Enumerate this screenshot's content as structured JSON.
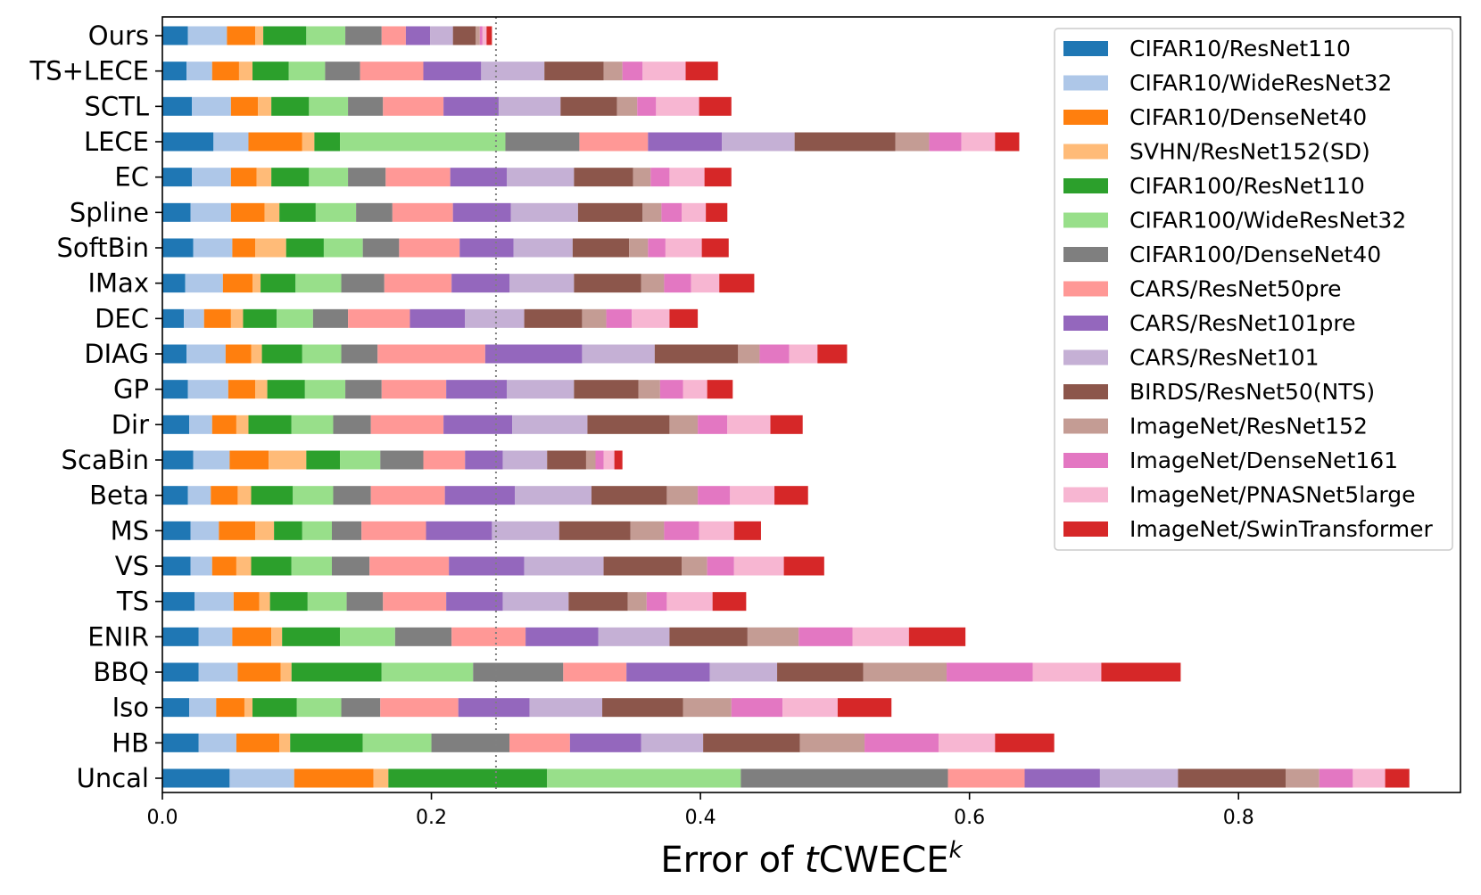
{
  "chart_data": {
    "type": "bar",
    "orientation": "horizontal",
    "stacked": true,
    "xlabel_prefix": "Error of ",
    "xlabel_italic": "t",
    "xlabel_main": "CWECE",
    "xlabel_superscript": "k",
    "xlim": [
      0,
      0.965
    ],
    "xticks": [
      "0.0",
      "0.2",
      "0.4",
      "0.6",
      "0.8"
    ],
    "xtick_values": [
      0,
      0.2,
      0.4,
      0.6,
      0.8
    ],
    "reference_line": 0.248,
    "legend_position": "top-right",
    "categories": [
      "Ours",
      "TS+LECE",
      "SCTL",
      "LECE",
      "EC",
      "Spline",
      "SoftBin",
      "IMax",
      "DEC",
      "DIAG",
      "GP",
      "Dir",
      "ScaBin",
      "Beta",
      "MS",
      "VS",
      "TS",
      "ENIR",
      "BBQ",
      "Iso",
      "HB",
      "Uncal"
    ],
    "series": [
      {
        "name": "CIFAR10/ResNet110",
        "color": "#1f77b4",
        "values": [
          0.019,
          0.018,
          0.022,
          0.038,
          0.022,
          0.021,
          0.023,
          0.017,
          0.016,
          0.018,
          0.019,
          0.02,
          0.023,
          0.019,
          0.021,
          0.021,
          0.024,
          0.027,
          0.027,
          0.02,
          0.027,
          0.05
        ]
      },
      {
        "name": "CIFAR10/WideResNet32",
        "color": "#aec7e8",
        "values": [
          0.029,
          0.019,
          0.029,
          0.026,
          0.029,
          0.03,
          0.029,
          0.028,
          0.015,
          0.029,
          0.03,
          0.017,
          0.027,
          0.017,
          0.021,
          0.016,
          0.029,
          0.025,
          0.029,
          0.02,
          0.028,
          0.048
        ]
      },
      {
        "name": "CIFAR10/DenseNet40",
        "color": "#ff7f0e",
        "values": [
          0.021,
          0.02,
          0.02,
          0.04,
          0.019,
          0.025,
          0.017,
          0.022,
          0.02,
          0.019,
          0.02,
          0.018,
          0.029,
          0.02,
          0.027,
          0.018,
          0.019,
          0.029,
          0.032,
          0.021,
          0.032,
          0.059
        ]
      },
      {
        "name": "SVHN/ResNet152(SD)",
        "color": "#ffbb78",
        "values": [
          0.006,
          0.01,
          0.01,
          0.009,
          0.011,
          0.011,
          0.023,
          0.006,
          0.009,
          0.008,
          0.009,
          0.009,
          0.028,
          0.01,
          0.014,
          0.011,
          0.008,
          0.008,
          0.008,
          0.006,
          0.008,
          0.011
        ]
      },
      {
        "name": "CIFAR100/ResNet110",
        "color": "#2ca02c",
        "values": [
          0.032,
          0.027,
          0.028,
          0.019,
          0.028,
          0.027,
          0.028,
          0.026,
          0.025,
          0.03,
          0.028,
          0.032,
          0.025,
          0.031,
          0.021,
          0.03,
          0.028,
          0.043,
          0.067,
          0.033,
          0.054,
          0.118
        ]
      },
      {
        "name": "CIFAR100/WideResNet32",
        "color": "#98df8a",
        "values": [
          0.029,
          0.027,
          0.029,
          0.123,
          0.029,
          0.03,
          0.029,
          0.034,
          0.027,
          0.029,
          0.03,
          0.031,
          0.03,
          0.03,
          0.022,
          0.03,
          0.029,
          0.041,
          0.068,
          0.033,
          0.051,
          0.144
        ]
      },
      {
        "name": "CIFAR100/DenseNet40",
        "color": "#7f7f7f",
        "values": [
          0.027,
          0.026,
          0.026,
          0.055,
          0.028,
          0.027,
          0.027,
          0.032,
          0.026,
          0.027,
          0.027,
          0.028,
          0.032,
          0.028,
          0.022,
          0.028,
          0.027,
          0.042,
          0.067,
          0.029,
          0.058,
          0.154
        ]
      },
      {
        "name": "CARS/ResNet50pre",
        "color": "#ff9896",
        "values": [
          0.018,
          0.047,
          0.045,
          0.051,
          0.048,
          0.045,
          0.045,
          0.05,
          0.046,
          0.08,
          0.048,
          0.054,
          0.031,
          0.055,
          0.048,
          0.059,
          0.047,
          0.055,
          0.047,
          0.058,
          0.045,
          0.057
        ]
      },
      {
        "name": "CARS/ResNet101pre",
        "color": "#9467bd",
        "values": [
          0.018,
          0.043,
          0.041,
          0.055,
          0.042,
          0.043,
          0.04,
          0.043,
          0.041,
          0.072,
          0.045,
          0.051,
          0.028,
          0.052,
          0.049,
          0.056,
          0.042,
          0.054,
          0.062,
          0.053,
          0.053,
          0.056
        ]
      },
      {
        "name": "CARS/ResNet101",
        "color": "#c5b0d5",
        "values": [
          0.017,
          0.047,
          0.046,
          0.054,
          0.05,
          0.05,
          0.044,
          0.048,
          0.044,
          0.054,
          0.05,
          0.056,
          0.033,
          0.057,
          0.05,
          0.059,
          0.049,
          0.053,
          0.05,
          0.054,
          0.046,
          0.058
        ]
      },
      {
        "name": "BIRDS/ResNet50(NTS)",
        "color": "#8c564b",
        "values": [
          0.017,
          0.044,
          0.042,
          0.075,
          0.044,
          0.048,
          0.042,
          0.05,
          0.043,
          0.062,
          0.048,
          0.061,
          0.029,
          0.056,
          0.053,
          0.058,
          0.044,
          0.058,
          0.064,
          0.06,
          0.072,
          0.08
        ]
      },
      {
        "name": "ImageNet/ResNet152",
        "color": "#c49c94",
        "values": [
          0.003,
          0.014,
          0.015,
          0.025,
          0.013,
          0.014,
          0.014,
          0.017,
          0.018,
          0.016,
          0.016,
          0.021,
          0.007,
          0.023,
          0.025,
          0.019,
          0.014,
          0.038,
          0.062,
          0.036,
          0.048,
          0.025
        ]
      },
      {
        "name": "ImageNet/DenseNet161",
        "color": "#e377c2",
        "values": [
          0.002,
          0.015,
          0.014,
          0.024,
          0.014,
          0.015,
          0.013,
          0.02,
          0.019,
          0.022,
          0.017,
          0.022,
          0.006,
          0.024,
          0.026,
          0.02,
          0.015,
          0.04,
          0.064,
          0.038,
          0.055,
          0.025
        ]
      },
      {
        "name": "ImageNet/PNASNet5large",
        "color": "#f7b6d2",
        "values": [
          0.003,
          0.032,
          0.032,
          0.025,
          0.026,
          0.018,
          0.027,
          0.021,
          0.028,
          0.021,
          0.018,
          0.032,
          0.008,
          0.033,
          0.026,
          0.037,
          0.034,
          0.042,
          0.051,
          0.041,
          0.042,
          0.024
        ]
      },
      {
        "name": "ImageNet/SwinTransformer",
        "color": "#d62728",
        "values": [
          0.004,
          0.024,
          0.024,
          0.018,
          0.02,
          0.016,
          0.02,
          0.026,
          0.021,
          0.022,
          0.019,
          0.024,
          0.006,
          0.025,
          0.02,
          0.03,
          0.025,
          0.042,
          0.059,
          0.04,
          0.044,
          0.018
        ]
      }
    ]
  }
}
